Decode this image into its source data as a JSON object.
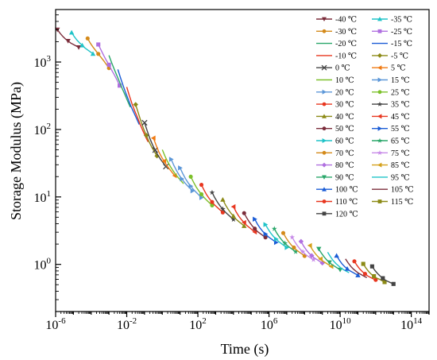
{
  "chart_data": {
    "type": "line",
    "title": "",
    "xlabel": "Time (s)",
    "ylabel": "Storage Modulus (MPa)",
    "xscale": "log",
    "yscale": "log",
    "xlim": [
      1e-06,
      1000000000000000.0
    ],
    "ylim": [
      0.2,
      6000
    ],
    "xticks": [
      {
        "value": 1e-06,
        "base": "10",
        "exp": "-6"
      },
      {
        "value": 0.01,
        "base": "10",
        "exp": "-2"
      },
      {
        "value": 100.0,
        "base": "10",
        "exp": "2"
      },
      {
        "value": 1000000.0,
        "base": "10",
        "exp": "6"
      },
      {
        "value": 10000000000.0,
        "base": "10",
        "exp": "10"
      },
      {
        "value": 100000000000000.0,
        "base": "10",
        "exp": "14"
      }
    ],
    "yticks": [
      {
        "value": 1,
        "base": "10",
        "exp": "0"
      },
      {
        "value": 10,
        "base": "10",
        "exp": "1"
      },
      {
        "value": 100,
        "base": "10",
        "exp": "2"
      },
      {
        "value": 1000,
        "base": "10",
        "exp": "3"
      }
    ],
    "grid": false,
    "legend_position": "top-right",
    "master_curve": {
      "logt": [
        -5.8,
        -5.4,
        -5.0,
        -4.6,
        -4.2,
        -3.8,
        -3.4,
        -3.0,
        -2.6,
        -2.2,
        -1.8,
        -1.4,
        -1.0,
        -0.6,
        -0.2,
        0.2,
        0.6,
        1.0,
        1.4,
        1.8,
        2.2,
        2.6,
        3.0,
        3.4,
        3.8,
        4.2,
        4.6,
        5.0,
        5.4,
        5.8,
        6.2,
        6.6,
        7.0,
        7.4,
        7.8,
        8.2,
        8.6,
        9.0,
        9.4,
        9.8,
        10.2,
        10.6,
        11.0,
        11.4,
        11.8,
        12.2,
        12.6,
        13.0
      ],
      "logE": [
        3.24,
        3.22,
        3.19,
        3.16,
        3.11,
        3.06,
        2.98,
        2.86,
        2.7,
        2.5,
        2.28,
        2.08,
        1.86,
        1.67,
        1.52,
        1.4,
        1.29,
        1.19,
        1.1,
        1.02,
        0.94,
        0.86,
        0.79,
        0.72,
        0.65,
        0.58,
        0.52,
        0.46,
        0.4,
        0.35,
        0.3,
        0.25,
        0.2,
        0.15,
        0.1,
        0.05,
        0.01,
        -0.03,
        -0.07,
        -0.11,
        -0.15,
        -0.18,
        -0.21,
        -0.24,
        -0.27,
        -0.29,
        -0.32,
        -0.34
      ]
    },
    "segment_log_width": 1.2,
    "segment_start_lift": [
      0.24,
      0.19,
      0.15,
      0.12,
      0.1,
      0.08,
      0.07,
      0.06,
      0.05
    ],
    "series": [
      {
        "name": "-40 ℃",
        "color": "#7b2d3b",
        "marker": "triangle-down",
        "start_logt": -5.9
      },
      {
        "name": "-35 ℃",
        "color": "#1fc3c8",
        "marker": "triangle-up",
        "start_logt": -5.1
      },
      {
        "name": "-30 ℃",
        "color": "#d48a1a",
        "marker": "circle",
        "start_logt": -4.2
      },
      {
        "name": "-25 ℃",
        "color": "#b070e0",
        "marker": "square",
        "start_logt": -3.6
      },
      {
        "name": "-20 ℃",
        "color": "#2aa76a",
        "marker": "none",
        "start_logt": -3.0
      },
      {
        "name": "-15 ℃",
        "color": "#1a5cd6",
        "marker": "none",
        "start_logt": -2.5
      },
      {
        "name": "-10 ℃",
        "color": "#e8361f",
        "marker": "none",
        "start_logt": -2.0
      },
      {
        "name": "-5 ℃",
        "color": "#8c8a16",
        "marker": "diamond",
        "start_logt": -1.5
      },
      {
        "name": "0 ℃",
        "color": "#444444",
        "marker": "x",
        "start_logt": -1.0
      },
      {
        "name": "5 ℃",
        "color": "#f07a12",
        "marker": "triangle-left",
        "start_logt": -0.5
      },
      {
        "name": "10 ℃",
        "color": "#7cc02a",
        "marker": "none",
        "start_logt": 0.0
      },
      {
        "name": "15 ℃",
        "color": "#5c97d8",
        "marker": "triangle-right",
        "start_logt": 0.5
      },
      {
        "name": "20 ℃",
        "color": "#5c97d8",
        "marker": "triangle-right",
        "start_logt": 1.0
      },
      {
        "name": "25 ℃",
        "color": "#7cc02a",
        "marker": "circle",
        "start_logt": 1.6
      },
      {
        "name": "30 ℃",
        "color": "#e8361f",
        "marker": "circle",
        "start_logt": 2.2
      },
      {
        "name": "35 ℃",
        "color": "#444444",
        "marker": "star",
        "start_logt": 2.8
      },
      {
        "name": "40 ℃",
        "color": "#8c8a16",
        "marker": "triangle-up",
        "start_logt": 3.4
      },
      {
        "name": "45 ℃",
        "color": "#e8361f",
        "marker": "triangle-left",
        "start_logt": 4.0
      },
      {
        "name": "50 ℃",
        "color": "#7b2d3b",
        "marker": "circle",
        "start_logt": 4.6
      },
      {
        "name": "55 ℃",
        "color": "#1a5cd6",
        "marker": "triangle-right",
        "start_logt": 5.2
      },
      {
        "name": "60 ℃",
        "color": "#1fc3c8",
        "marker": "triangle-right",
        "start_logt": 5.8
      },
      {
        "name": "65 ℃",
        "color": "#2aa76a",
        "marker": "star",
        "start_logt": 6.3
      },
      {
        "name": "70 ℃",
        "color": "#d48a1a",
        "marker": "circle",
        "start_logt": 6.8
      },
      {
        "name": "75 ℃",
        "color": "#c78ae8",
        "marker": "star",
        "start_logt": 7.3
      },
      {
        "name": "80 ℃",
        "color": "#b070e0",
        "marker": "diamond",
        "start_logt": 7.8
      },
      {
        "name": "85 ℃",
        "color": "#d4a01a",
        "marker": "triangle-left",
        "start_logt": 8.3
      },
      {
        "name": "90 ℃",
        "color": "#2aa76a",
        "marker": "triangle-down",
        "start_logt": 8.8
      },
      {
        "name": "95 ℃",
        "color": "#1fc3c8",
        "marker": "none",
        "start_logt": 9.3
      },
      {
        "name": "100 ℃",
        "color": "#1a5cd6",
        "marker": "triangle-up",
        "start_logt": 9.8
      },
      {
        "name": "105 ℃",
        "color": "#7b2d3b",
        "marker": "none",
        "start_logt": 10.3
      },
      {
        "name": "110 ℃",
        "color": "#e8361f",
        "marker": "circle",
        "start_logt": 10.8
      },
      {
        "name": "115 ℃",
        "color": "#8c8a16",
        "marker": "square",
        "start_logt": 11.3
      },
      {
        "name": "120 ℃",
        "color": "#444444",
        "marker": "square",
        "start_logt": 11.8
      }
    ]
  }
}
